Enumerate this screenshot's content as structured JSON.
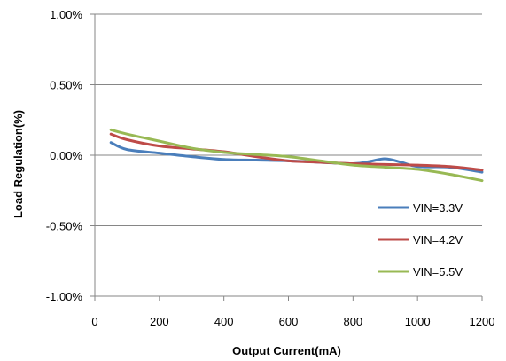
{
  "chart_data": {
    "type": "line",
    "title": "",
    "xlabel": "Output Current(mA)",
    "ylabel": "Load Regulation(%)",
    "xlim": [
      0,
      1200
    ],
    "ylim": [
      -1.0,
      1.0
    ],
    "x_ticks": [
      0,
      200,
      400,
      600,
      800,
      1000,
      1200
    ],
    "x_tick_labels": [
      "0",
      "200",
      "400",
      "600",
      "800",
      "1000",
      "1200"
    ],
    "y_ticks": [
      1.0,
      0.5,
      0.0,
      -0.5,
      -1.0
    ],
    "y_tick_labels": [
      "1.00%",
      "0.50%",
      "0.00%",
      "-0.50%",
      "-1.00%"
    ],
    "grid": "horizontal",
    "legend_position": "right",
    "series": [
      {
        "name": "VIN=3.3V",
        "color": "#4a7ebb",
        "x": [
          50,
          100,
          200,
          300,
          400,
          500,
          600,
          700,
          800,
          850,
          900,
          950,
          1000,
          1100,
          1200
        ],
        "y": [
          0.09,
          0.04,
          0.015,
          -0.01,
          -0.03,
          -0.035,
          -0.04,
          -0.05,
          -0.06,
          -0.045,
          -0.025,
          -0.05,
          -0.08,
          -0.085,
          -0.12
        ]
      },
      {
        "name": "VIN=4.2V",
        "color": "#be4b48",
        "x": [
          50,
          100,
          200,
          300,
          400,
          500,
          600,
          700,
          800,
          900,
          1000,
          1100,
          1200
        ],
        "y": [
          0.15,
          0.11,
          0.065,
          0.045,
          0.025,
          -0.01,
          -0.04,
          -0.05,
          -0.06,
          -0.065,
          -0.07,
          -0.08,
          -0.105
        ]
      },
      {
        "name": "VIN=5.5V",
        "color": "#98b954",
        "x": [
          50,
          100,
          200,
          300,
          400,
          500,
          600,
          700,
          800,
          900,
          1000,
          1100,
          1200
        ],
        "y": [
          0.18,
          0.15,
          0.1,
          0.05,
          0.02,
          0.005,
          -0.01,
          -0.04,
          -0.07,
          -0.085,
          -0.1,
          -0.135,
          -0.18
        ]
      }
    ]
  }
}
